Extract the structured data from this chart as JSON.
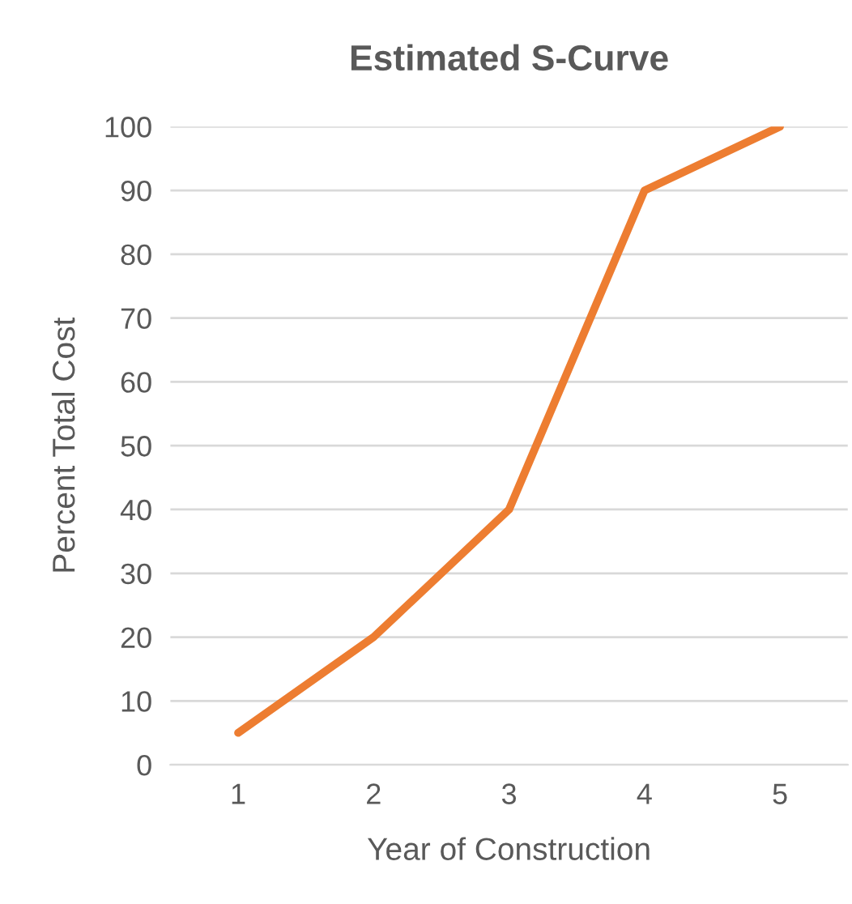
{
  "chart_data": {
    "type": "line",
    "title": "Estimated S-Curve",
    "xlabel": "Year of Construction",
    "ylabel": "Percent Total Cost",
    "categories": [
      "1",
      "2",
      "3",
      "4",
      "5"
    ],
    "series": [
      {
        "color": "#ed7d31",
        "values": [
          5,
          20,
          40,
          90,
          100
        ]
      }
    ],
    "ylim": [
      0,
      100
    ],
    "yticks": [
      0,
      10,
      20,
      30,
      40,
      50,
      60,
      70,
      80,
      90,
      100
    ],
    "grid": "y",
    "marker": "none",
    "line_style": "solid"
  }
}
